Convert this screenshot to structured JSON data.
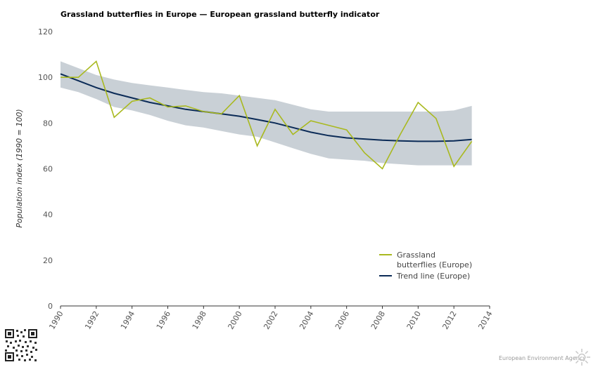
{
  "title": "Grassland butterflies in Europe — European grassland butterfly indicator",
  "footer": {
    "agency": "European Environment Agency"
  },
  "colors": {
    "butterflies": "#a9b91f",
    "trend": "#0b2b57",
    "band": "#c9d0d6",
    "axis": "#333333"
  },
  "chart_data": {
    "type": "line",
    "ylabel": "Population index (1990 = 100)",
    "xlim": [
      1990,
      2014
    ],
    "ylim": [
      0,
      120
    ],
    "x_ticks": [
      1990,
      1992,
      1994,
      1996,
      1998,
      2000,
      2002,
      2004,
      2006,
      2008,
      2010,
      2012,
      2014
    ],
    "y_ticks": [
      0,
      20,
      40,
      60,
      80,
      100,
      120
    ],
    "grid": false,
    "legend_position": "bottom-right",
    "years": [
      1990,
      1991,
      1992,
      1993,
      1994,
      1995,
      1996,
      1997,
      1998,
      1999,
      2000,
      2001,
      2002,
      2003,
      2004,
      2005,
      2006,
      2007,
      2008,
      2009,
      2010,
      2011,
      2012,
      2013
    ],
    "series": [
      {
        "name": "Grassland butterflies (Europe)",
        "legend_lines": [
          "Grassland",
          "butterflies (Europe)"
        ],
        "values": [
          100,
          100,
          107,
          82.5,
          89.5,
          91,
          87,
          87.5,
          85,
          84,
          92,
          70,
          86,
          75,
          81,
          79,
          77,
          67,
          60,
          75,
          89,
          82,
          61,
          72
        ]
      },
      {
        "name": "Trend line (Europe)",
        "legend_lines": [
          "Trend line (Europe)"
        ],
        "values": [
          101.5,
          98.5,
          95.5,
          93,
          91,
          89,
          87.5,
          86,
          85,
          84,
          83,
          81.5,
          80,
          78,
          76,
          74.5,
          73.5,
          73,
          72.5,
          72.2,
          72,
          72,
          72.2,
          72.8
        ]
      }
    ],
    "confidence_band": {
      "upper": [
        107,
        104,
        101,
        99,
        97.5,
        96.5,
        95.5,
        94.5,
        93.5,
        93,
        92,
        91,
        90,
        88,
        86,
        85,
        85,
        85,
        85,
        85,
        85,
        85,
        85.5,
        87.5
      ],
      "lower": [
        95.5,
        93.5,
        90.5,
        87,
        85.5,
        83.5,
        81,
        79,
        78,
        76.5,
        75,
        74,
        71.5,
        69,
        66.5,
        64.5,
        64,
        63.5,
        62.5,
        62,
        61.5,
        61.5,
        61.5,
        61.5
      ]
    }
  }
}
